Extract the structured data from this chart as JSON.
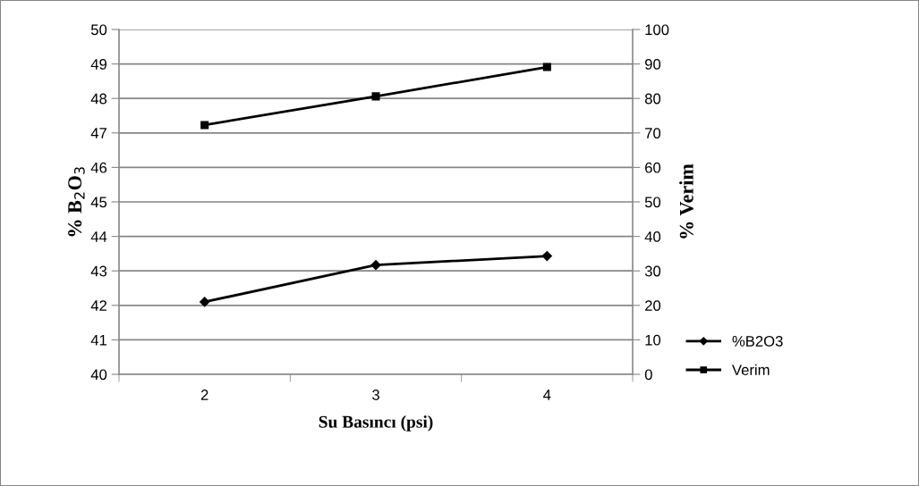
{
  "chart_data": {
    "type": "line",
    "xlabel": "Su Basıncı (psi)",
    "ylabel": "% B$_{2}$O$_{3}$",
    "y2label": "% Verim",
    "categories": [
      "2",
      "3",
      "4"
    ],
    "series": [
      {
        "name": "%B2O3",
        "color": "#000000",
        "values": [
          42.1,
          43.17,
          43.43
        ],
        "marker": "diamond"
      },
      {
        "name": "Verim",
        "color": "#000000",
        "values": [
          72.3,
          80.6,
          89.1
        ],
        "marker": "square",
        "axis": "y2"
      }
    ],
    "ylim": [
      40,
      50
    ],
    "yticks": [
      40,
      41,
      42,
      43,
      44,
      45,
      46,
      47,
      48,
      49,
      50
    ],
    "y2lim": [
      0,
      100
    ],
    "y2ticks": [
      0,
      10,
      20,
      30,
      40,
      50,
      60,
      70,
      80,
      90,
      100
    ],
    "grid": "y",
    "legend": "right",
    "line_style": "solid"
  }
}
